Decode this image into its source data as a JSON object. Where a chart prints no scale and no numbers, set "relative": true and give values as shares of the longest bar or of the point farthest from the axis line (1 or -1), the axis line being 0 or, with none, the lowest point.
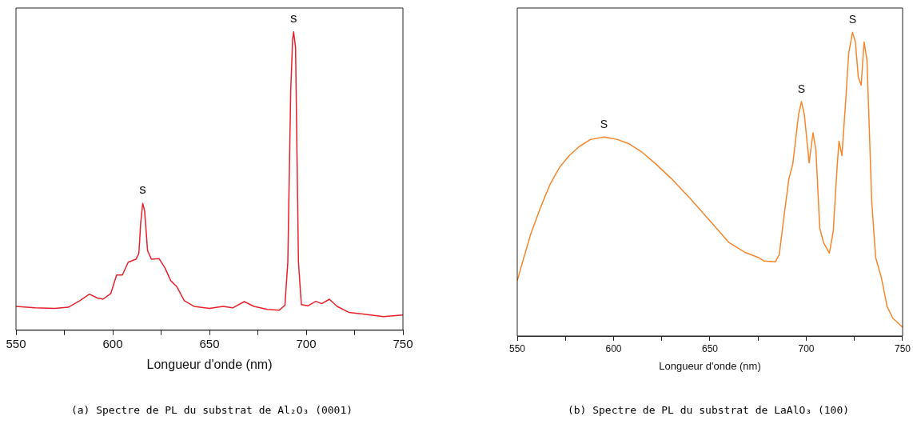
{
  "chart_data": [
    {
      "type": "line",
      "relative": true,
      "xlabel": "Longueur d'onde (nm)",
      "xlim": [
        550,
        750
      ],
      "xticks": [
        550,
        {
          "value": 575,
          "label": null
        },
        600,
        {
          "value": 625,
          "label": null
        },
        650,
        {
          "value": 675,
          "label": null
        },
        700,
        {
          "value": 725,
          "label": null
        },
        750
      ],
      "tick_labels": "x",
      "grid": false,
      "legend": false,
      "marker": "none",
      "line_style": "solid",
      "series": [
        {
          "color": "#e8202a",
          "x": [
            550,
            560,
            570,
            577,
            583,
            588,
            592,
            595,
            599,
            602,
            605,
            608,
            612,
            613.5,
            614.5,
            615.5,
            616.5,
            618,
            620,
            624,
            627,
            630,
            633,
            637,
            642,
            650,
            657,
            662,
            668,
            673,
            680,
            686,
            689,
            690.5,
            692,
            693,
            693.5,
            694.5,
            696,
            697.5,
            701,
            705,
            708,
            712,
            716,
            722,
            730,
            740,
            750
          ],
          "values": [
            0.08,
            0.075,
            0.073,
            0.077,
            0.099,
            0.121,
            0.108,
            0.104,
            0.123,
            0.185,
            0.185,
            0.228,
            0.238,
            0.257,
            0.362,
            0.425,
            0.4,
            0.267,
            0.238,
            0.24,
            0.209,
            0.166,
            0.147,
            0.099,
            0.08,
            0.073,
            0.08,
            0.075,
            0.096,
            0.08,
            0.07,
            0.067,
            0.084,
            0.228,
            0.803,
            0.976,
            1,
            0.947,
            0.228,
            0.086,
            0.082,
            0.097,
            0.089,
            0.104,
            0.08,
            0.06,
            0.054,
            0.046,
            0.051
          ]
        }
      ],
      "annotations": [
        {
          "text": "s",
          "x": 615.5,
          "y": 0.425
        },
        {
          "text": "s",
          "x": 693.5,
          "y": 1
        },
        "(a) Spectre de PL du substrat de Al₂O₃ (0001)"
      ]
    },
    {
      "type": "line",
      "relative": true,
      "xlabel": "Longueur d'onde (nm)",
      "xlim": [
        550,
        750
      ],
      "xticks": [
        550,
        {
          "value": 575,
          "label": null
        },
        600,
        {
          "value": 625,
          "label": null
        },
        650,
        {
          "value": 675,
          "label": null
        },
        700,
        {
          "value": 725,
          "label": null
        },
        750
      ],
      "tick_labels": "x",
      "grid": false,
      "legend": false,
      "marker": "none",
      "line_style": "solid",
      "series": [
        {
          "color": "#f7862a",
          "x": [
            550,
            553,
            557,
            562,
            567,
            572,
            577,
            582,
            588,
            595,
            602,
            608,
            615,
            622,
            630,
            640,
            650,
            660,
            668,
            675,
            678,
            684,
            686,
            689,
            691,
            693,
            696,
            697.5,
            699,
            701.5,
            703.5,
            705,
            707,
            709,
            712,
            714,
            716,
            717,
            718.5,
            720.5,
            722,
            724,
            725.5,
            727,
            728.5,
            730,
            731.5,
            734,
            736,
            739,
            742,
            745,
            750
          ],
          "values": [
            0.182,
            0.249,
            0.336,
            0.422,
            0.499,
            0.556,
            0.594,
            0.623,
            0.647,
            0.655,
            0.647,
            0.633,
            0.604,
            0.566,
            0.518,
            0.451,
            0.379,
            0.307,
            0.276,
            0.259,
            0.247,
            0.244,
            0.269,
            0.422,
            0.518,
            0.566,
            0.729,
            0.772,
            0.729,
            0.57,
            0.669,
            0.613,
            0.355,
            0.307,
            0.273,
            0.345,
            0.556,
            0.642,
            0.594,
            0.777,
            0.93,
            1,
            0.968,
            0.853,
            0.826,
            0.968,
            0.91,
            0.441,
            0.259,
            0.192,
            0.096,
            0.058,
            0.029
          ]
        }
      ],
      "annotations": [
        {
          "text": "S",
          "x": 595,
          "y": 0.655
        },
        {
          "text": "S",
          "x": 697.5,
          "y": 0.772
        },
        {
          "text": "S",
          "x": 724,
          "y": 1
        },
        "(b) Spectre de PL du substrat de LaAlO₃ (100)"
      ]
    }
  ]
}
